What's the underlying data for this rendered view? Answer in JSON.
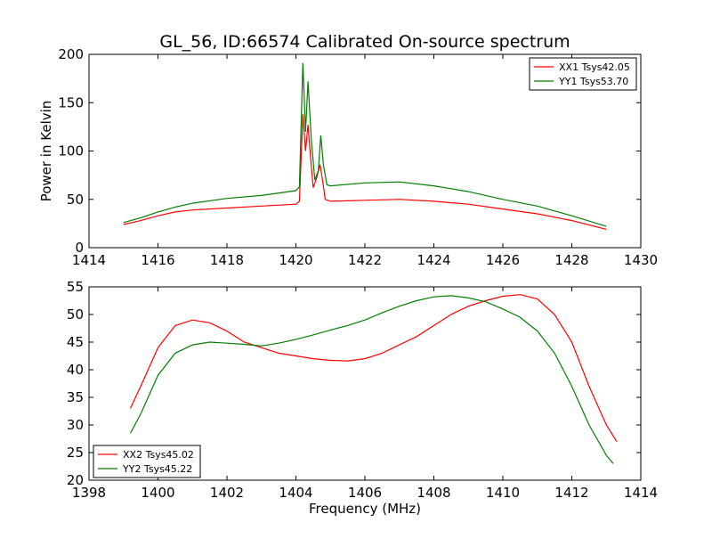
{
  "title": "GL_56, ID:66574 Calibrated On-source spectrum",
  "colors": {
    "xx": "#ff0000",
    "yy": "#008000"
  },
  "chart_data": [
    {
      "type": "line",
      "ylabel": "Power in Kelvin",
      "xlabel": "",
      "xlim": [
        1414,
        1430
      ],
      "ylim": [
        0,
        200
      ],
      "xticks": [
        "1414",
        "1416",
        "1418",
        "1420",
        "1422",
        "1424",
        "1426",
        "1428",
        "1430"
      ],
      "yticks": [
        "0",
        "50",
        "100",
        "150",
        "200"
      ],
      "legend_position": "top-right",
      "series": [
        {
          "name": "XX1 Tsys42.05",
          "color": "#ff0000",
          "points": [
            [
              1415.0,
              24
            ],
            [
              1415.5,
              28
            ],
            [
              1416.0,
              33
            ],
            [
              1416.5,
              37
            ],
            [
              1417.0,
              39
            ],
            [
              1418.0,
              41
            ],
            [
              1419.0,
              43
            ],
            [
              1420.0,
              45
            ],
            [
              1420.1,
              48
            ],
            [
              1420.2,
              138
            ],
            [
              1420.28,
              100
            ],
            [
              1420.35,
              127
            ],
            [
              1420.42,
              95
            ],
            [
              1420.5,
              62
            ],
            [
              1420.6,
              72
            ],
            [
              1420.7,
              86
            ],
            [
              1420.78,
              68
            ],
            [
              1420.85,
              50
            ],
            [
              1421.0,
              48
            ],
            [
              1422.0,
              49
            ],
            [
              1423.0,
              50
            ],
            [
              1424.0,
              48
            ],
            [
              1425.0,
              45
            ],
            [
              1426.0,
              40
            ],
            [
              1427.0,
              35
            ],
            [
              1428.0,
              28
            ],
            [
              1429.0,
              19
            ]
          ]
        },
        {
          "name": "YY1 Tsys53.70",
          "color": "#008000",
          "points": [
            [
              1415.0,
              26
            ],
            [
              1415.5,
              31
            ],
            [
              1416.0,
              37
            ],
            [
              1416.5,
              42
            ],
            [
              1417.0,
              46
            ],
            [
              1418.0,
              51
            ],
            [
              1419.0,
              54
            ],
            [
              1420.0,
              59
            ],
            [
              1420.1,
              63
            ],
            [
              1420.2,
              191
            ],
            [
              1420.28,
              120
            ],
            [
              1420.35,
              172
            ],
            [
              1420.45,
              110
            ],
            [
              1420.55,
              70
            ],
            [
              1420.65,
              80
            ],
            [
              1420.72,
              116
            ],
            [
              1420.8,
              85
            ],
            [
              1420.9,
              65
            ],
            [
              1421.0,
              64
            ],
            [
              1422.0,
              67
            ],
            [
              1423.0,
              68
            ],
            [
              1424.0,
              64
            ],
            [
              1425.0,
              58
            ],
            [
              1426.0,
              50
            ],
            [
              1427.0,
              43
            ],
            [
              1428.0,
              33
            ],
            [
              1429.0,
              22
            ]
          ]
        }
      ]
    },
    {
      "type": "line",
      "ylabel": "",
      "xlabel": "Frequency (MHz)",
      "xlim": [
        1398,
        1414
      ],
      "ylim": [
        20,
        55
      ],
      "xticks": [
        "1398",
        "1400",
        "1402",
        "1404",
        "1406",
        "1408",
        "1410",
        "1412",
        "1414"
      ],
      "yticks": [
        "20",
        "25",
        "30",
        "35",
        "40",
        "45",
        "50",
        "55"
      ],
      "legend_position": "bottom-left",
      "series": [
        {
          "name": "XX2 Tsys45.02",
          "color": "#ff0000",
          "points": [
            [
              1399.2,
              33
            ],
            [
              1399.5,
              37
            ],
            [
              1400.0,
              44
            ],
            [
              1400.5,
              48
            ],
            [
              1401.0,
              49
            ],
            [
              1401.5,
              48.5
            ],
            [
              1402.0,
              47
            ],
            [
              1402.5,
              45
            ],
            [
              1403.0,
              44
            ],
            [
              1403.5,
              43
            ],
            [
              1404.0,
              42.5
            ],
            [
              1404.5,
              42
            ],
            [
              1405.0,
              41.7
            ],
            [
              1405.5,
              41.6
            ],
            [
              1406.0,
              42
            ],
            [
              1406.5,
              43
            ],
            [
              1407.0,
              44.5
            ],
            [
              1407.5,
              46
            ],
            [
              1408.0,
              48
            ],
            [
              1408.5,
              50
            ],
            [
              1409.0,
              51.5
            ],
            [
              1409.5,
              52.5
            ],
            [
              1410.0,
              53.3
            ],
            [
              1410.5,
              53.6
            ],
            [
              1411.0,
              52.8
            ],
            [
              1411.5,
              50
            ],
            [
              1412.0,
              45
            ],
            [
              1412.5,
              37
            ],
            [
              1413.0,
              30
            ],
            [
              1413.3,
              27
            ]
          ]
        },
        {
          "name": "YY2 Tsys45.22",
          "color": "#008000",
          "points": [
            [
              1399.2,
              28.5
            ],
            [
              1399.5,
              32
            ],
            [
              1400.0,
              39
            ],
            [
              1400.5,
              43
            ],
            [
              1401.0,
              44.5
            ],
            [
              1401.5,
              45
            ],
            [
              1402.0,
              44.8
            ],
            [
              1402.5,
              44.6
            ],
            [
              1403.0,
              44.3
            ],
            [
              1403.5,
              44.8
            ],
            [
              1404.0,
              45.5
            ],
            [
              1404.5,
              46.3
            ],
            [
              1405.0,
              47.2
            ],
            [
              1405.5,
              48
            ],
            [
              1406.0,
              49
            ],
            [
              1406.5,
              50.3
            ],
            [
              1407.0,
              51.5
            ],
            [
              1407.5,
              52.5
            ],
            [
              1408.0,
              53.2
            ],
            [
              1408.5,
              53.4
            ],
            [
              1409.0,
              53
            ],
            [
              1409.5,
              52.3
            ],
            [
              1410.0,
              51
            ],
            [
              1410.5,
              49.5
            ],
            [
              1411.0,
              47
            ],
            [
              1411.5,
              43
            ],
            [
              1412.0,
              37
            ],
            [
              1412.5,
              30
            ],
            [
              1413.0,
              24.5
            ],
            [
              1413.2,
              23
            ]
          ]
        }
      ]
    }
  ]
}
